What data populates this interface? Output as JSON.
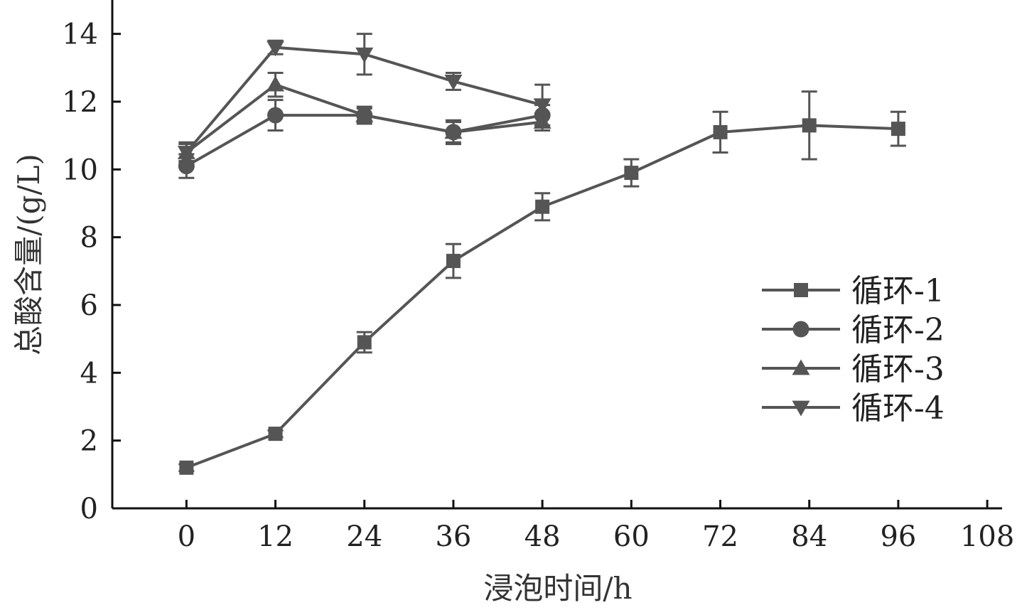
{
  "chart_data": {
    "type": "line",
    "xlabel": "浸泡时间/h",
    "ylabel": "总酸含量/(g/L)",
    "xlim": [
      -10,
      110
    ],
    "ylim": [
      0,
      15
    ],
    "xticks": [
      0,
      12,
      24,
      36,
      48,
      60,
      72,
      84,
      96,
      108
    ],
    "yticks": [
      0,
      2,
      4,
      6,
      8,
      10,
      12,
      14
    ],
    "grid": false,
    "legend_position": "center-right",
    "line_color": "#555555",
    "series": [
      {
        "name": "循环-1",
        "marker": "square",
        "x": [
          0,
          12,
          24,
          36,
          48,
          60,
          72,
          84,
          96
        ],
        "y": [
          1.2,
          2.2,
          4.9,
          7.3,
          8.9,
          9.9,
          11.1,
          11.3,
          11.2
        ],
        "err": [
          0.1,
          0.1,
          0.3,
          0.5,
          0.4,
          0.4,
          0.6,
          1.0,
          0.5
        ]
      },
      {
        "name": "循环-2",
        "marker": "circle",
        "x": [
          0,
          12,
          24,
          36,
          48
        ],
        "y": [
          10.1,
          11.6,
          11.6,
          11.1,
          11.6
        ],
        "err": [
          0.35,
          0.45,
          0.25,
          0.35,
          0.3
        ]
      },
      {
        "name": "循环-3",
        "marker": "triangle-up",
        "x": [
          0,
          12,
          24,
          36,
          48
        ],
        "y": [
          10.5,
          12.5,
          11.6,
          11.1,
          11.4
        ],
        "err": [
          0.3,
          0.35,
          0.2,
          0.3,
          0.25
        ]
      },
      {
        "name": "循环-4",
        "marker": "triangle-down",
        "x": [
          0,
          12,
          24,
          36,
          48
        ],
        "y": [
          10.5,
          13.6,
          13.4,
          12.6,
          11.9
        ],
        "err": [
          0.25,
          0.2,
          0.6,
          0.25,
          0.6
        ]
      }
    ]
  }
}
